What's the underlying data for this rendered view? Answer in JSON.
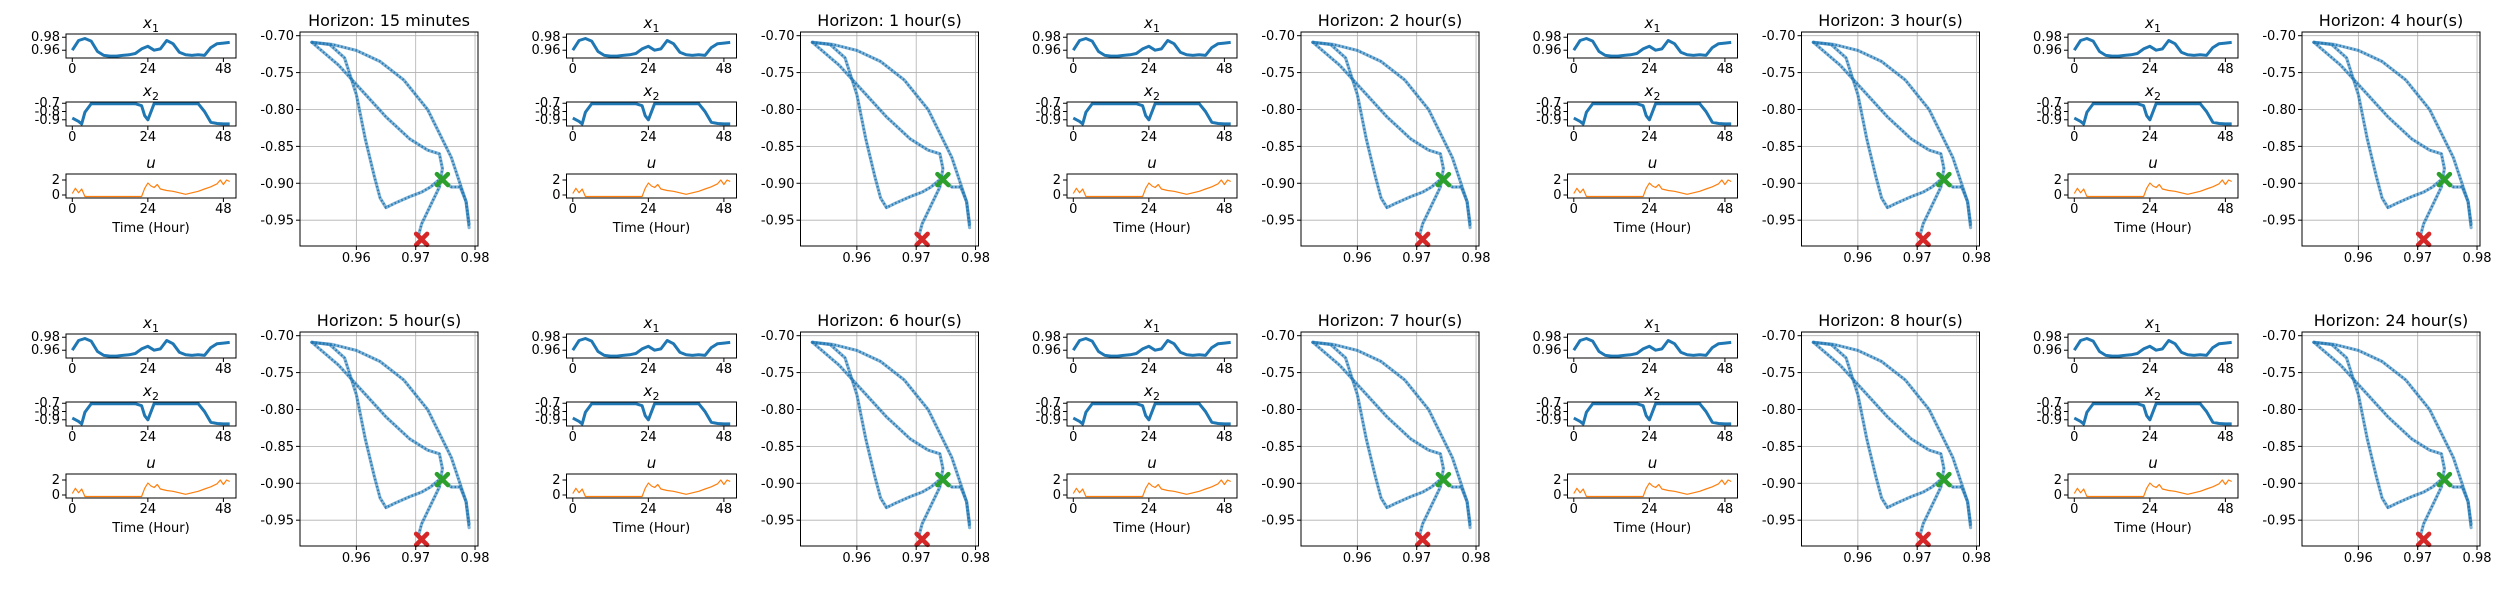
{
  "figure": {
    "time_xlabel": "Time (Hour)",
    "small_titles": [
      "x1",
      "x2",
      "u"
    ],
    "colors": {
      "state": "#1f77b4",
      "control": "#ff7f0e",
      "start": "#2ca02c",
      "end": "#d62728",
      "grid": "#b0b0b0"
    }
  },
  "chart_data": [
    {
      "type": "scatter",
      "title": "Horizon: 15 minutes"
    },
    {
      "type": "scatter",
      "title": "Horizon: 1 hour(s)"
    },
    {
      "type": "scatter",
      "title": "Horizon: 2 hour(s)"
    },
    {
      "type": "scatter",
      "title": "Horizon: 3 hour(s)"
    },
    {
      "type": "scatter",
      "title": "Horizon: 4 hour(s)"
    },
    {
      "type": "scatter",
      "title": "Horizon: 5 hour(s)"
    },
    {
      "type": "scatter",
      "title": "Horizon: 6 hour(s)"
    },
    {
      "type": "scatter",
      "title": "Horizon: 7 hour(s)"
    },
    {
      "type": "scatter",
      "title": "Horizon: 8 hour(s)"
    },
    {
      "type": "scatter",
      "title": "Horizon: 24 hour(s)"
    }
  ],
  "shared_axes": {
    "phase": {
      "xticks": [
        "0.96",
        "0.97",
        "0.98"
      ],
      "xtick_values": [
        0.96,
        0.97,
        0.98
      ],
      "yticks": [
        "-0.70",
        "-0.75",
        "-0.80",
        "-0.85",
        "-0.90",
        "-0.95"
      ],
      "ytick_values": [
        -0.7,
        -0.75,
        -0.8,
        -0.85,
        -0.9,
        -0.95
      ],
      "xlim": [
        0.9505,
        0.9805
      ],
      "ylim": [
        -0.985,
        -0.695
      ],
      "grid": true,
      "start_marker": {
        "x": 0.9745,
        "y": -0.895
      },
      "end_marker": {
        "x": 0.971,
        "y": -0.976
      }
    },
    "x1": {
      "xticks": [
        "0",
        "24",
        "48"
      ],
      "xtick_values": [
        0,
        24,
        48
      ],
      "yticks": [
        "0.98",
        "0.96"
      ],
      "ytick_values": [
        0.98,
        0.96
      ],
      "xlim": [
        -2,
        52
      ],
      "ylim": [
        0.948,
        0.985
      ]
    },
    "x2": {
      "xticks": [
        "0",
        "24",
        "48"
      ],
      "xtick_values": [
        0,
        24,
        48
      ],
      "yticks": [
        "-0.7",
        "-0.8",
        "-0.9"
      ],
      "ytick_values": [
        -0.7,
        -0.8,
        -0.9
      ],
      "xlim": [
        -2,
        52
      ],
      "ylim": [
        -0.975,
        -0.685
      ]
    },
    "u": {
      "xticks": [
        "0",
        "24",
        "48"
      ],
      "xtick_values": [
        0,
        24,
        48
      ],
      "yticks": [
        "2",
        "0"
      ],
      "ytick_values": [
        2,
        0
      ],
      "xlim": [
        -2,
        52
      ],
      "ylim": [
        -0.4,
        2.8
      ]
    }
  },
  "series": {
    "x1": {
      "t": [
        0,
        2,
        4,
        6,
        8,
        10,
        12,
        14,
        16,
        18,
        20,
        22,
        24,
        26,
        28,
        30,
        32,
        34,
        36,
        38,
        40,
        42,
        44,
        46,
        48,
        50
      ],
      "v": [
        0.96,
        0.975,
        0.978,
        0.974,
        0.958,
        0.952,
        0.951,
        0.951,
        0.952,
        0.953,
        0.955,
        0.962,
        0.966,
        0.96,
        0.962,
        0.975,
        0.97,
        0.957,
        0.953,
        0.952,
        0.953,
        0.952,
        0.964,
        0.97,
        0.971,
        0.972
      ]
    },
    "x2": {
      "t": [
        0,
        2,
        3,
        4,
        6,
        8,
        10,
        12,
        14,
        16,
        18,
        20,
        22,
        23,
        24,
        26,
        28,
        30,
        32,
        34,
        36,
        38,
        40,
        42,
        44,
        46,
        48,
        50
      ],
      "v": [
        -0.88,
        -0.92,
        -0.95,
        -0.81,
        -0.705,
        -0.705,
        -0.705,
        -0.705,
        -0.705,
        -0.705,
        -0.705,
        -0.705,
        -0.73,
        -0.85,
        -0.9,
        -0.705,
        -0.705,
        -0.705,
        -0.705,
        -0.705,
        -0.705,
        -0.705,
        -0.705,
        -0.8,
        -0.93,
        -0.945,
        -0.95,
        -0.95
      ]
    },
    "u": {
      "t": [
        0,
        1,
        2,
        3,
        4,
        5,
        6,
        8,
        10,
        12,
        14,
        16,
        18,
        20,
        22,
        23,
        24,
        25,
        26,
        27,
        28,
        30,
        32,
        34,
        36,
        38,
        40,
        42,
        44,
        46,
        47,
        48,
        49,
        50
      ],
      "v": [
        0.2,
        0.9,
        0.3,
        0.8,
        -0.2,
        -0.2,
        -0.2,
        -0.2,
        -0.2,
        -0.2,
        -0.2,
        -0.2,
        -0.2,
        -0.2,
        -0.2,
        0.9,
        1.6,
        1.2,
        1.0,
        1.4,
        0.8,
        0.6,
        0.5,
        0.3,
        0.1,
        0.3,
        0.5,
        0.8,
        1.1,
        1.5,
        2.0,
        1.4,
        2.0,
        1.8
      ]
    },
    "phase": [
      {
        "x": [
          0.9525,
          0.956,
          0.96,
          0.964,
          0.968,
          0.972,
          0.976,
          0.9785,
          0.979
        ],
        "y": [
          -0.709,
          -0.712,
          -0.72,
          -0.735,
          -0.76,
          -0.8,
          -0.865,
          -0.925,
          -0.955
        ]
      },
      {
        "x": [
          0.9525,
          0.9555,
          0.958,
          0.96,
          0.9615,
          0.963,
          0.964,
          0.965,
          0.9665,
          0.969,
          0.971,
          0.9725,
          0.974
        ],
        "y": [
          -0.709,
          -0.712,
          -0.73,
          -0.78,
          -0.84,
          -0.89,
          -0.92,
          -0.933,
          -0.927,
          -0.918,
          -0.912,
          -0.905,
          -0.895
        ]
      },
      {
        "x": [
          0.9525,
          0.957,
          0.961,
          0.965,
          0.969,
          0.972,
          0.974,
          0.9745,
          0.974,
          0.9725,
          0.971,
          0.9705,
          0.971
        ],
        "y": [
          -0.709,
          -0.74,
          -0.775,
          -0.81,
          -0.84,
          -0.855,
          -0.86,
          -0.88,
          -0.905,
          -0.93,
          -0.955,
          -0.97,
          -0.976
        ]
      },
      {
        "x": [
          0.9745,
          0.976,
          0.9775,
          0.9785,
          0.979
        ],
        "y": [
          -0.895,
          -0.905,
          -0.905,
          -0.925,
          -0.96
        ]
      }
    ]
  }
}
